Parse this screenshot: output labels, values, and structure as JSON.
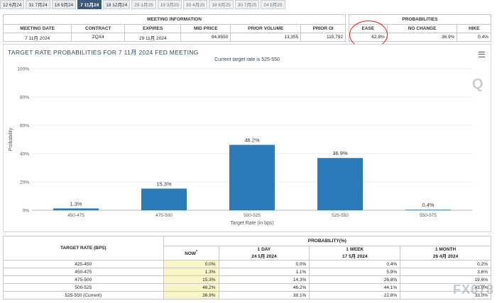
{
  "tabs": [
    {
      "label": "12 6月24",
      "state": "normal"
    },
    {
      "label": "31 7月24",
      "state": "normal"
    },
    {
      "label": "18 9月24",
      "state": "normal"
    },
    {
      "label": "7 11月24",
      "state": "active"
    },
    {
      "label": "18 12月24",
      "state": "normal"
    },
    {
      "label": "29 1月25",
      "state": "muted"
    },
    {
      "label": "19 3月25",
      "state": "muted"
    },
    {
      "label": "30 4月25",
      "state": "muted"
    },
    {
      "label": "18 6月25",
      "state": "muted"
    },
    {
      "label": "30 7月25",
      "state": "muted"
    },
    {
      "label": "24 9月25",
      "state": "muted"
    }
  ],
  "meeting_info": {
    "title": "MEETING INFORMATION",
    "headers": [
      "MEETING DATE",
      "CONTRACT",
      "EXPIRES",
      "MID PRICE",
      "PRIOR VOLUME",
      "PRIOR OI"
    ],
    "values": [
      "7 11月 2024",
      "ZQX4",
      "29 11月 2024",
      "94.8550",
      "13,355",
      "115,792"
    ]
  },
  "probabilities": {
    "title": "PROBABILITIES",
    "headers": [
      "EASE",
      "NO CHANGE",
      "HIKE"
    ],
    "values": [
      "62.8%",
      "36.9%",
      "0.4%"
    ]
  },
  "annotation_color": "#e2231a",
  "chart_header": {
    "title": "TARGET RATE PROBABILITIES FOR 7 11月 2024 FED MEETING",
    "subtitle": "Current target rate is 525-550",
    "menu_icon": "hamburger-menu-icon",
    "logo": "Q"
  },
  "chart_data": {
    "type": "bar",
    "categories": [
      "450-475",
      "475-500",
      "500-525",
      "525-550",
      "550-575"
    ],
    "values": [
      1.3,
      15.3,
      46.2,
      36.9,
      0.4
    ],
    "value_labels": [
      "1.3%",
      "15.3%",
      "46.2%",
      "36.9%",
      "0.4%"
    ],
    "title": "TARGET RATE PROBABILITIES FOR 7 11月 2024 FED MEETING",
    "xlabel": "Target Rate (in bps)",
    "ylabel": "Probability",
    "ylim": [
      0,
      100
    ],
    "yticks": [
      "0%",
      "20%",
      "40%",
      "60%",
      "80%",
      "100%"
    ],
    "grid": true,
    "bar_color": "#2b7bb9"
  },
  "detail_table": {
    "col_header_left": "TARGET RATE (BPS)",
    "col_header_group": "PROBABILITY(%)",
    "columns": [
      {
        "line1": "NOW",
        "line2": "",
        "sup": "*"
      },
      {
        "line1": "1 DAY",
        "line2": "24 5月 2024",
        "sup": ""
      },
      {
        "line1": "1 WEEK",
        "line2": "17 5月 2024",
        "sup": ""
      },
      {
        "line1": "1 MONTH",
        "line2": "26 4月 2024",
        "sup": ""
      }
    ],
    "rows": [
      {
        "rate": "425-450",
        "values": [
          "0.0%",
          "0.0%",
          "0.4%",
          "0.2%"
        ]
      },
      {
        "rate": "450-475",
        "values": [
          "1.3%",
          "1.1%",
          "5.9%",
          "3.6%"
        ]
      },
      {
        "rate": "475-500",
        "values": [
          "15.3%",
          "14.3%",
          "26.8%",
          "19.6%"
        ]
      },
      {
        "rate": "500-525",
        "values": [
          "46.2%",
          "46.2%",
          "44.1%",
          "43.8%"
        ]
      },
      {
        "rate": "525-550 (Current)",
        "values": [
          "36.9%",
          "38.1%",
          "22.8%",
          "33.0%"
        ]
      }
    ]
  },
  "watermark": "FX678"
}
